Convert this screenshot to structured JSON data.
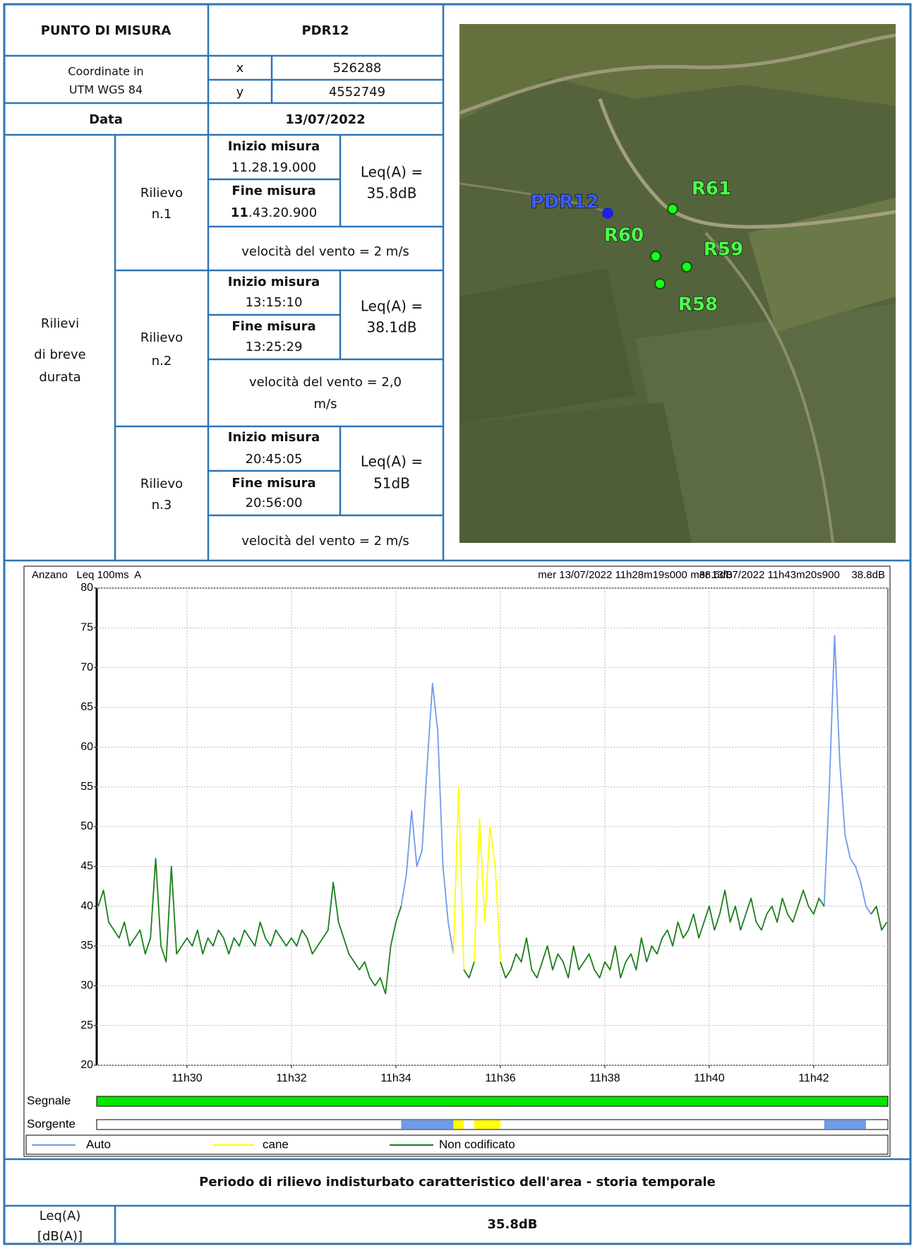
{
  "header": {
    "label": "PUNTO DI MISURA",
    "value": "PDR12"
  },
  "coordinates": {
    "label": [
      "Coordinate in",
      "UTM WGS 84"
    ],
    "x_label": "x",
    "x": "526288",
    "y_label": "y",
    "y": "4552749"
  },
  "date": {
    "label": "Data",
    "value": "13/07/2022"
  },
  "short_measurements": {
    "label": [
      "Rilievi",
      "di breve",
      "durata"
    ],
    "rilievi": [
      {
        "name": [
          "Rilievo",
          "n.1"
        ],
        "inizio_label": "Inizio misura",
        "inizio": "11.28.19.000",
        "fine_label": "Fine misura",
        "fine": [
          "11",
          ".43.20.900"
        ],
        "leq": [
          "Leq(A) =",
          "35.8dB"
        ],
        "velocita": [
          "velocità del vento = 2 m/s"
        ]
      },
      {
        "name": [
          "Rilievo",
          "n.2"
        ],
        "inizio_label": "Inizio misura",
        "inizio": "13:15:10",
        "fine_label": "Fine misura",
        "fine": [
          "13:25:29"
        ],
        "leq": [
          "Leq(A) =",
          "38.1dB"
        ],
        "velocita": [
          "velocità del vento = 2,0",
          "m/s"
        ]
      },
      {
        "name": [
          "Rilievo",
          "n.3"
        ],
        "inizio_label": "Inizio misura",
        "inizio": "20:45:05",
        "fine_label": "Fine misura",
        "fine": [
          "20:56:00"
        ],
        "leq": [
          "Leq(A) =",
          "51dB"
        ],
        "velocita": [
          "velocità del vento = 2 m/s"
        ]
      }
    ]
  },
  "map": {
    "labels": [
      "PDR12",
      "R61",
      "R60",
      "R59",
      "R58"
    ]
  },
  "chart_data": {
    "type": "line",
    "title": "Anzano   Leq 100ms  A",
    "annotations": [
      "mer 13/07/2022 11h28m19s000    38.6dB",
      "mer 13/07/2022 11h43m20s900    38.8dB"
    ],
    "xlim": [
      688.27,
      703.42
    ],
    "xticks": [
      {
        "value": 690,
        "label": "11h30"
      },
      {
        "value": 692,
        "label": "11h32"
      },
      {
        "value": 694,
        "label": "11h34"
      },
      {
        "value": 696,
        "label": "11h36"
      },
      {
        "value": 698,
        "label": "11h38"
      },
      {
        "value": 700,
        "label": "11h40"
      },
      {
        "value": 702,
        "label": "11h42"
      }
    ],
    "ylim": [
      20,
      80
    ],
    "yticks": [
      20,
      25,
      30,
      35,
      40,
      45,
      50,
      55,
      60,
      65,
      70,
      75,
      80
    ],
    "grid": true,
    "series": [
      {
        "name": "Auto",
        "color": "#6f9be8",
        "x": [
          694.1,
          694.2,
          694.3,
          694.4,
          694.5,
          694.6,
          694.7,
          694.8,
          694.9,
          695,
          695.1,
          null,
          702.2,
          702.3,
          702.4,
          702.5,
          702.6,
          702.7,
          702.8,
          702.9,
          703,
          703.1
        ],
        "values": [
          40,
          44,
          52,
          45,
          47,
          58,
          68,
          62,
          45,
          38,
          34,
          null,
          40,
          55,
          74,
          58,
          49,
          46,
          45,
          43,
          40,
          39
        ]
      },
      {
        "name": "cane",
        "color": "#ffff00",
        "x": [
          695.1,
          695.2,
          695.3,
          null,
          695.5,
          695.6,
          695.7,
          695.8,
          695.9,
          696
        ],
        "values": [
          34,
          55,
          32,
          null,
          33,
          51,
          38,
          50,
          45,
          33
        ]
      },
      {
        "name": "Non codificato",
        "color": "#1a7f1a",
        "x": [
          688.3,
          688.4,
          688.5,
          688.6,
          688.7,
          688.8,
          688.9,
          689,
          689.1,
          689.2,
          689.3,
          689.4,
          689.5,
          689.6,
          689.7,
          689.8,
          689.9,
          690,
          690.1,
          690.2,
          690.3,
          690.4,
          690.5,
          690.6,
          690.7,
          690.8,
          690.9,
          691,
          691.1,
          691.2,
          691.3,
          691.4,
          691.5,
          691.6,
          691.7,
          691.8,
          691.9,
          692,
          692.1,
          692.2,
          692.3,
          692.4,
          692.5,
          692.6,
          692.7,
          692.8,
          692.9,
          693,
          693.1,
          693.2,
          693.3,
          693.4,
          693.5,
          693.6,
          693.7,
          693.8,
          693.9,
          694,
          694.1,
          null,
          695.3,
          695.4,
          695.5,
          null,
          696,
          696.1,
          696.2,
          696.3,
          696.4,
          696.5,
          696.6,
          696.7,
          696.8,
          696.9,
          697,
          697.1,
          697.2,
          697.3,
          697.4,
          697.5,
          697.6,
          697.7,
          697.8,
          697.9,
          698,
          698.1,
          698.2,
          698.3,
          698.4,
          698.5,
          698.6,
          698.7,
          698.8,
          698.9,
          699,
          699.1,
          699.2,
          699.3,
          699.4,
          699.5,
          699.6,
          699.7,
          699.8,
          699.9,
          700,
          700.1,
          700.2,
          700.3,
          700.4,
          700.5,
          700.6,
          700.7,
          700.8,
          700.9,
          701,
          701.1,
          701.2,
          701.3,
          701.4,
          701.5,
          701.6,
          701.7,
          701.8,
          701.9,
          702,
          702.1,
          702.2,
          null,
          703.1,
          703.2,
          703.3,
          703.4
        ],
        "values": [
          40,
          42,
          38,
          37,
          36,
          38,
          35,
          36,
          37,
          34,
          36,
          46,
          35,
          33,
          45,
          34,
          35,
          36,
          35,
          37,
          34,
          36,
          35,
          37,
          36,
          34,
          36,
          35,
          37,
          36,
          35,
          38,
          36,
          35,
          37,
          36,
          35,
          36,
          35,
          37,
          36,
          34,
          35,
          36,
          37,
          43,
          38,
          36,
          34,
          33,
          32,
          33,
          31,
          30,
          31,
          29,
          35,
          38,
          40,
          null,
          32,
          31,
          33,
          null,
          33,
          31,
          32,
          34,
          33,
          36,
          32,
          31,
          33,
          35,
          32,
          34,
          33,
          31,
          35,
          32,
          33,
          34,
          32,
          31,
          33,
          32,
          35,
          31,
          33,
          34,
          32,
          36,
          33,
          35,
          34,
          36,
          37,
          35,
          38,
          36,
          37,
          39,
          36,
          38,
          40,
          37,
          39,
          42,
          38,
          40,
          37,
          39,
          41,
          38,
          37,
          39,
          40,
          38,
          41,
          39,
          38,
          40,
          42,
          40,
          39,
          41,
          40,
          null,
          39,
          40,
          37,
          38
        ]
      }
    ],
    "signal_label": "Segnale",
    "signal_color": "#00e600",
    "source_label": "Sorgente",
    "sources": [
      {
        "color": "#6f9be8",
        "start": 694.1,
        "end": 695.1
      },
      {
        "color": "#ffff00",
        "start": 695.1,
        "end": 695.3
      },
      {
        "color": "#ffff00",
        "start": 695.5,
        "end": 696
      },
      {
        "color": "#6f9be8",
        "start": 702.2,
        "end": 703
      }
    ]
  },
  "section_title": "Periodo di rilievo indisturbato caratteristico dell'area - storia temporale",
  "result": {
    "label": [
      "Leq(A)",
      "[dB(A)]"
    ],
    "value": "35.8dB"
  }
}
